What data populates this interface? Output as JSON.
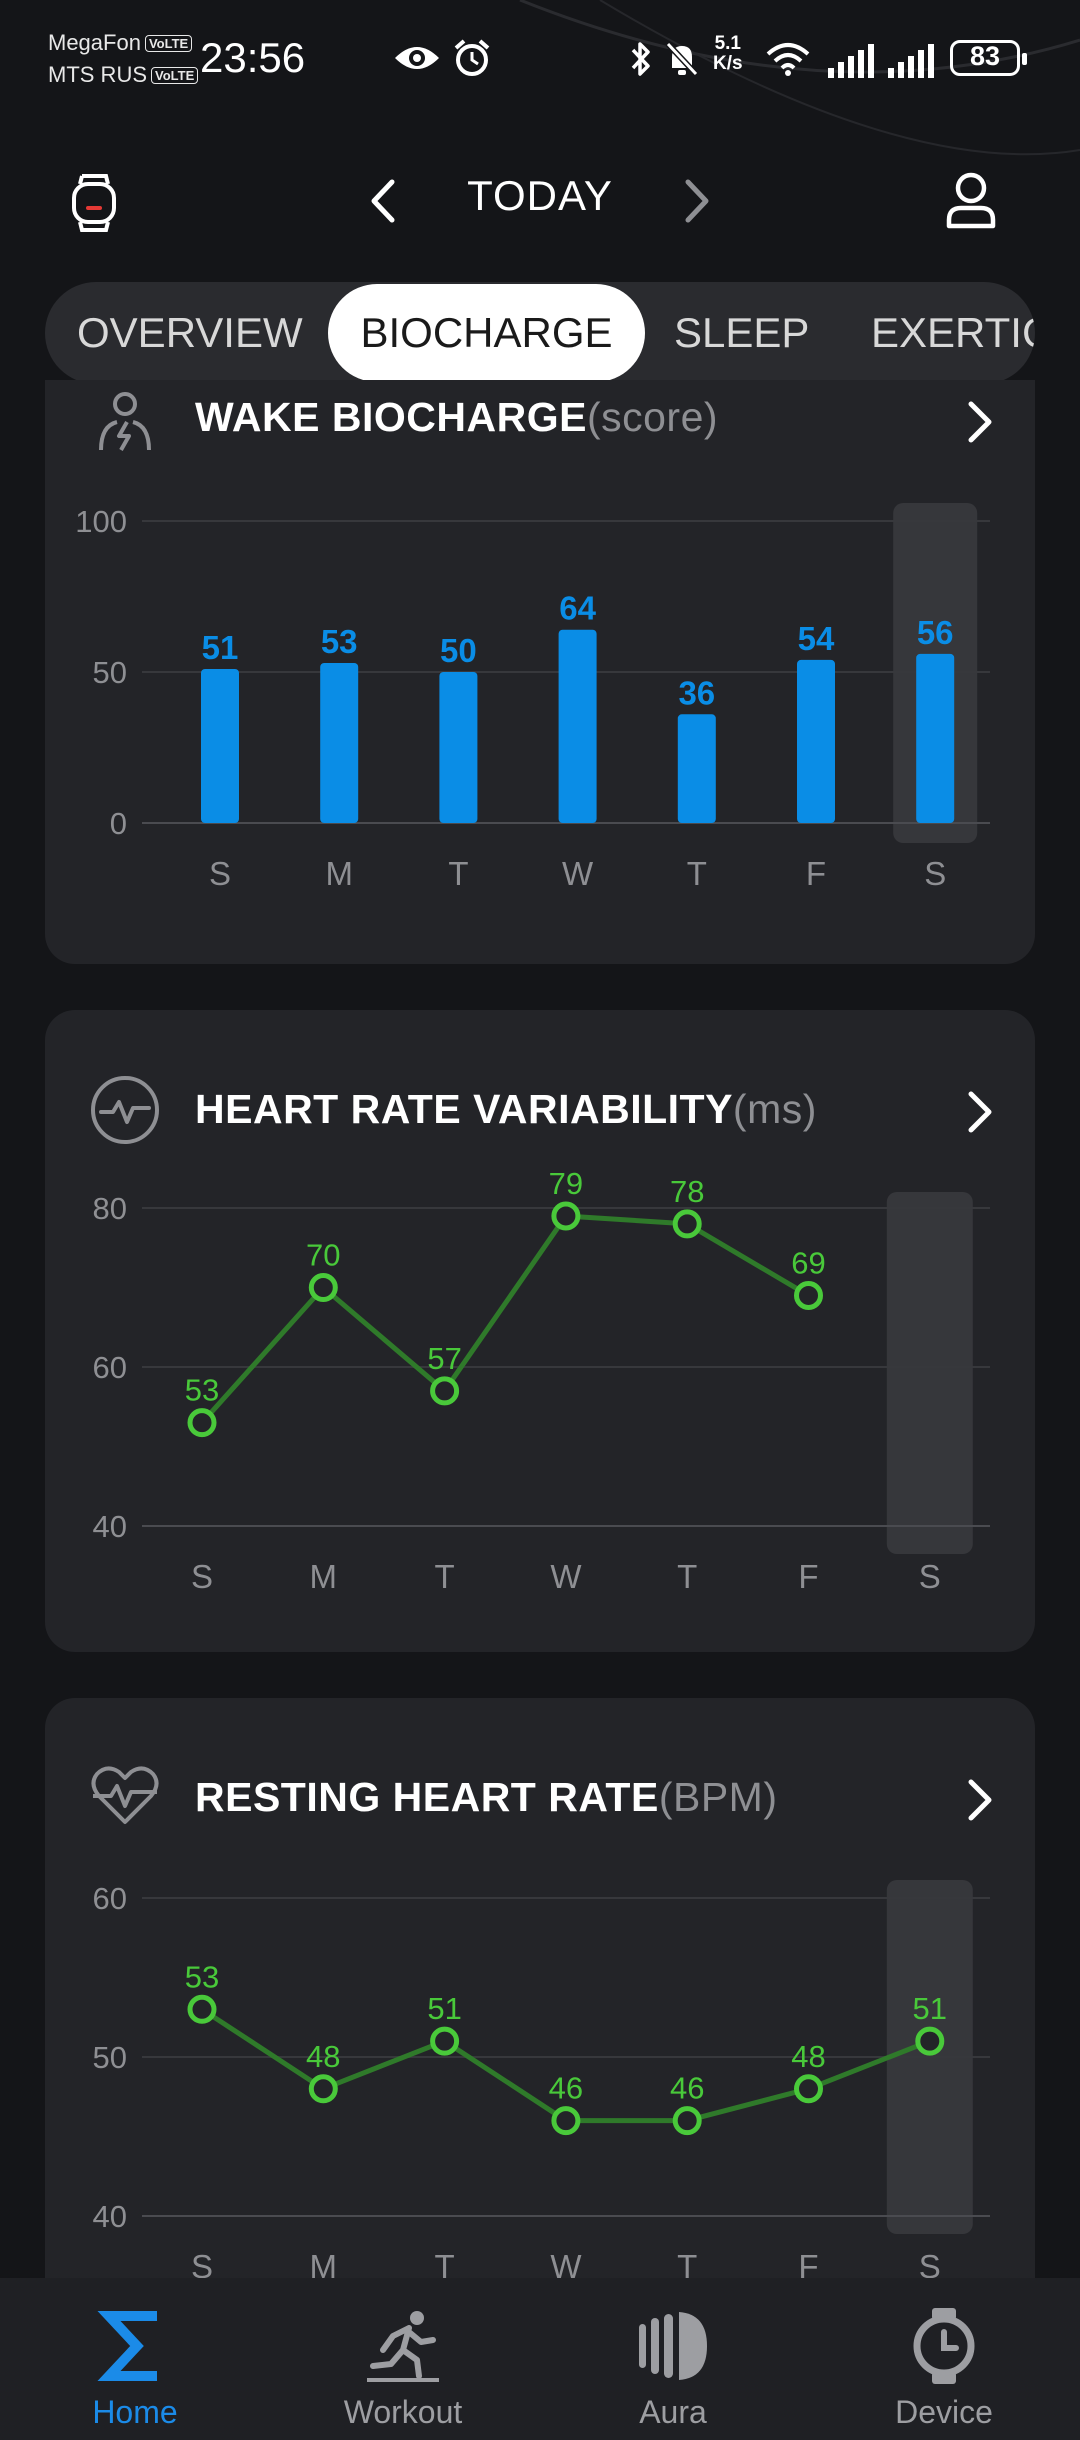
{
  "status_bar": {
    "carrier1": "MegaFon",
    "carrier2": "MTS RUS",
    "volte": "VoLTE",
    "time": "23:56",
    "net_speed_value": "5.1",
    "net_speed_unit": "K/s",
    "battery": "83",
    "icons": [
      "eye-icon",
      "alarm-icon",
      "bluetooth-icon",
      "bell-off-icon",
      "wifi-icon",
      "signal-icon",
      "signal-icon"
    ]
  },
  "header": {
    "title": "TODAY",
    "left_icon": "watch-icon",
    "right_icon": "profile-icon"
  },
  "tabs": [
    {
      "label": "OVERVIEW",
      "active": false
    },
    {
      "label": "BIOCHARGE",
      "active": true
    },
    {
      "label": "SLEEP",
      "active": false
    },
    {
      "label": "EXERTIC",
      "active": false
    }
  ],
  "cards": {
    "biocharge": {
      "title": "WAKE BIOCHARGE",
      "unit": "(score)",
      "icon": "biocharge-icon"
    },
    "hrv": {
      "title": "HEART RATE VARIABILITY",
      "unit": "(ms)",
      "icon": "hrv-icon"
    },
    "rhr": {
      "title": "RESTING HEART RATE",
      "unit": "(BPM)",
      "icon": "heart-rate-icon"
    }
  },
  "chart_data": [
    {
      "type": "bar",
      "title": "WAKE BIOCHARGE(score)",
      "categories": [
        "S",
        "M",
        "T",
        "W",
        "T",
        "F",
        "S"
      ],
      "values": [
        51,
        53,
        50,
        64,
        36,
        54,
        56
      ],
      "ylim": [
        0,
        100
      ],
      "yticks": [
        "0",
        "50",
        "100"
      ],
      "highlight_index": 6,
      "color": "#0a8de6",
      "grid": true
    },
    {
      "type": "line",
      "title": "HEART RATE VARIABILITY(ms)",
      "categories": [
        "S",
        "M",
        "T",
        "W",
        "T",
        "F",
        "S"
      ],
      "values": [
        53,
        70,
        57,
        79,
        78,
        69,
        null
      ],
      "ylim": [
        40,
        80
      ],
      "yticks": [
        "40",
        "60",
        "80"
      ],
      "highlight_index": 6,
      "color": "#49c93a",
      "grid": true
    },
    {
      "type": "line",
      "title": "RESTING HEART RATE(BPM)",
      "categories": [
        "S",
        "M",
        "T",
        "W",
        "T",
        "F",
        "S"
      ],
      "values": [
        53,
        48,
        51,
        46,
        46,
        48,
        51
      ],
      "ylim": [
        40,
        60
      ],
      "yticks": [
        "40",
        "50",
        "60"
      ],
      "highlight_index": 6,
      "color": "#49c93a",
      "grid": true
    }
  ],
  "bottom_nav": [
    {
      "label": "Home",
      "icon": "sigma-icon",
      "active": true
    },
    {
      "label": "Workout",
      "icon": "runner-icon",
      "active": false
    },
    {
      "label": "Aura",
      "icon": "aura-icon",
      "active": false
    },
    {
      "label": "Device",
      "icon": "stopwatch-icon",
      "active": false
    }
  ],
  "colors": {
    "accent": "#1b8be8",
    "bar": "#0a8de6",
    "line_point": "#49c93a",
    "line": "#2f7a2a"
  }
}
